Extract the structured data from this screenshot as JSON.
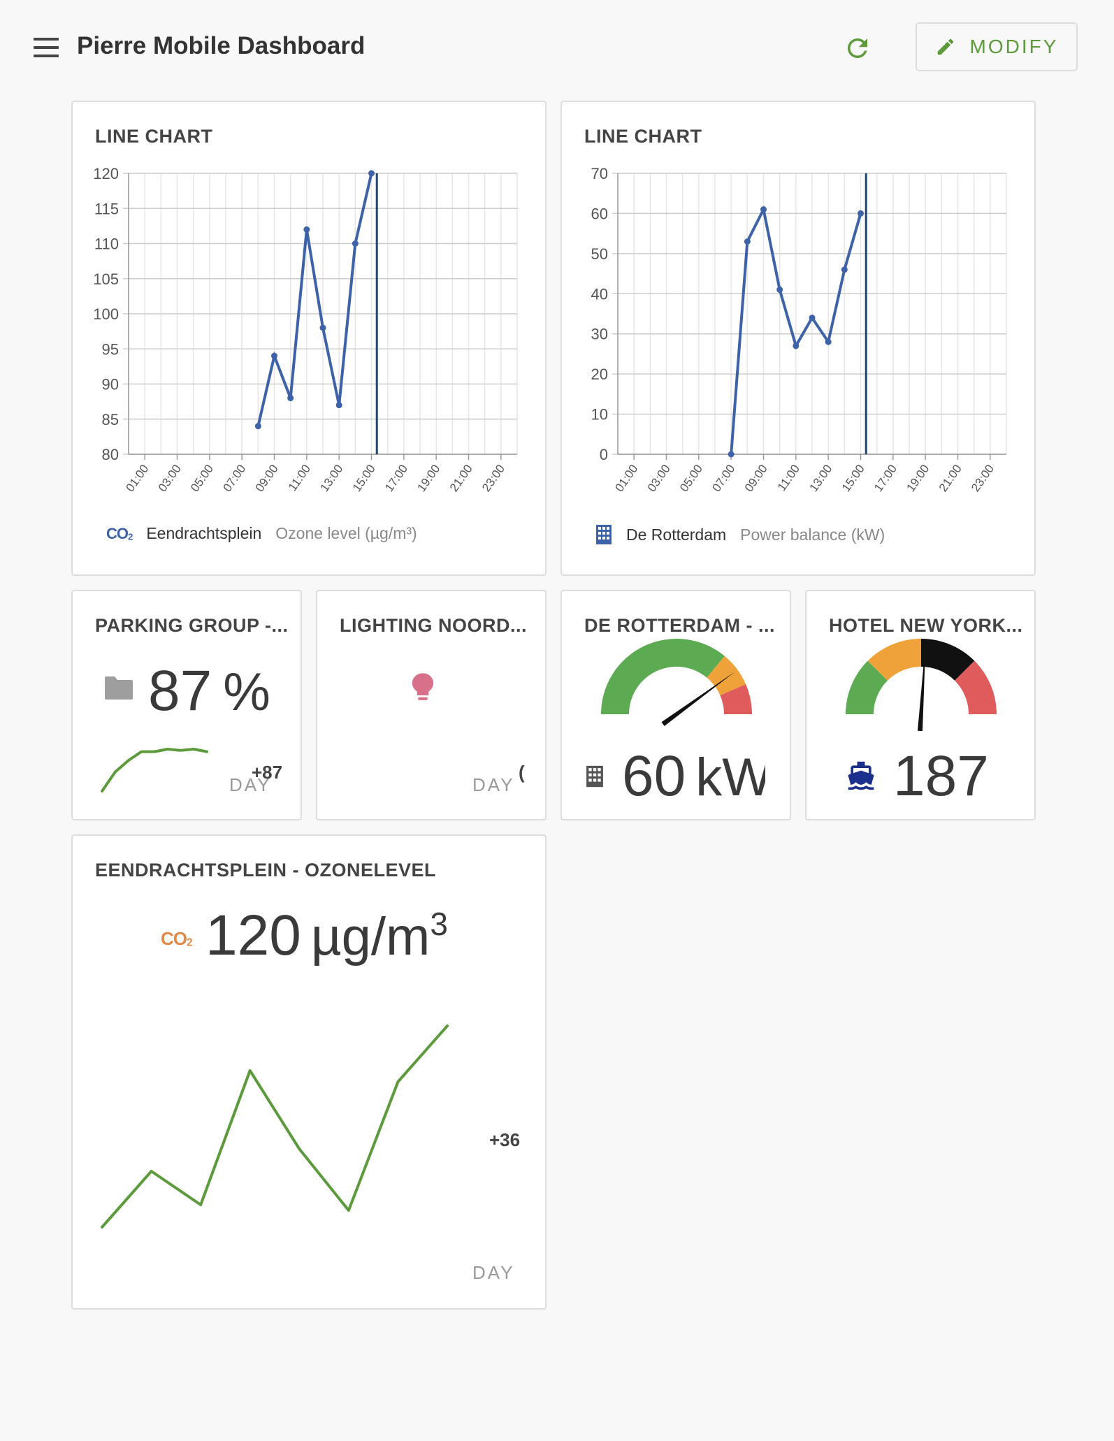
{
  "header": {
    "title": "Pierre Mobile Dashboard",
    "modify_label": "MODIFY",
    "accent_color": "#5c9a3c"
  },
  "line_chart_1": {
    "title": "LINE CHART",
    "legend_icon": "co2-icon",
    "legend_location": "Eendrachtsplein",
    "legend_metric": "Ozone level (µg/m³)",
    "chart_data": {
      "type": "line",
      "x_ticks": [
        "01:00",
        "03:00",
        "05:00",
        "07:00",
        "09:00",
        "11:00",
        "13:00",
        "15:00",
        "17:00",
        "19:00",
        "21:00",
        "23:00"
      ],
      "y_ticks": [
        80,
        85,
        90,
        95,
        100,
        105,
        110,
        115,
        120
      ],
      "ylim": [
        80,
        120
      ],
      "x": [
        "08:00",
        "09:00",
        "10:00",
        "11:00",
        "12:00",
        "13:00",
        "14:00",
        "15:00"
      ],
      "values": [
        84,
        94,
        88,
        112,
        98,
        87,
        110,
        120
      ],
      "current_marker": "15:20",
      "line_color": "#3d62a8"
    }
  },
  "line_chart_2": {
    "title": "LINE CHART",
    "legend_icon": "building-icon",
    "legend_location": "De Rotterdam",
    "legend_metric": "Power balance (kW)",
    "chart_data": {
      "type": "line",
      "x_ticks": [
        "01:00",
        "03:00",
        "05:00",
        "07:00",
        "09:00",
        "11:00",
        "13:00",
        "15:00",
        "17:00",
        "19:00",
        "21:00",
        "23:00"
      ],
      "y_ticks": [
        0,
        10,
        20,
        30,
        40,
        50,
        60,
        70
      ],
      "ylim": [
        0,
        70
      ],
      "x": [
        "07:00",
        "08:00",
        "09:00",
        "10:00",
        "11:00",
        "12:00",
        "13:00",
        "14:00",
        "15:00"
      ],
      "values": [
        0,
        53,
        61,
        41,
        27,
        34,
        28,
        46,
        60
      ],
      "current_marker": "15:20",
      "line_color": "#3d62a8"
    }
  },
  "parking_card": {
    "title": "PARKING GROUP -...",
    "icon": "folder-icon",
    "value": "87",
    "unit": "%",
    "delta": "+87",
    "period": "DAY",
    "sparkline": [
      0,
      30,
      48,
      62,
      62,
      66,
      64,
      66,
      62
    ],
    "sparkline_color": "#5c9a3c"
  },
  "lighting_card": {
    "title": "LIGHTING NOORD...",
    "icon": "lightbulb-icon",
    "icon_color": "#d9708a",
    "delta": "(",
    "period": "DAY"
  },
  "rotterdam_gauge_card": {
    "title": "DE ROTTERDAM - ...",
    "icon": "building-icon",
    "value": "60",
    "unit": "kW",
    "gauge": {
      "value": 60,
      "needle_fraction": 0.8,
      "bands": [
        {
          "color": "#5cab52",
          "from": 0,
          "to": 0.72
        },
        {
          "color": "#f0a23a",
          "from": 0.72,
          "to": 0.87
        },
        {
          "color": "#e05b5b",
          "from": 0.87,
          "to": 1
        }
      ]
    }
  },
  "hotel_gauge_card": {
    "title": "HOTEL NEW YORK...",
    "icon": "ship-icon",
    "icon_color": "#1b2f8c",
    "value": "187",
    "gauge": {
      "value": 187,
      "needle_fraction": 0.52,
      "bands": [
        {
          "color": "#5cab52",
          "from": 0,
          "to": 0.25
        },
        {
          "color": "#f0a23a",
          "from": 0.25,
          "to": 0.5
        },
        {
          "color": "#111111",
          "from": 0.5,
          "to": 0.75
        },
        {
          "color": "#e05b5b",
          "from": 0.75,
          "to": 1
        }
      ]
    }
  },
  "ozone_card": {
    "title": "EENDRACHTSPLEIN - OZONELEVEL",
    "icon": "co2-icon",
    "icon_color": "#e08a4a",
    "value": "120",
    "unit": "µg/m",
    "unit_sup": "3",
    "delta": "+36",
    "period": "DAY",
    "sparkline": [
      84,
      94,
      88,
      112,
      98,
      87,
      110,
      120
    ],
    "sparkline_color": "#5c9a3c"
  }
}
